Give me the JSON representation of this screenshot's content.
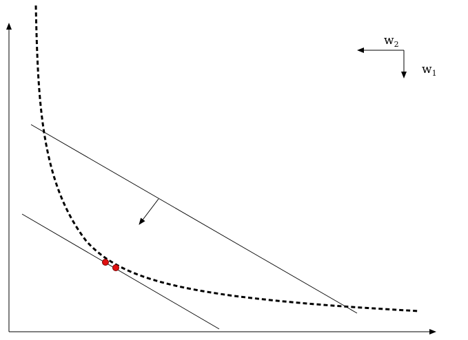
{
  "labels": {
    "w2": {
      "base": "w",
      "sub": "2"
    },
    "w1": {
      "base": "w",
      "sub": "1"
    }
  },
  "colors": {
    "ink": "#000000",
    "point_fill": "#e01010",
    "point_stroke": "#7a0000"
  }
}
